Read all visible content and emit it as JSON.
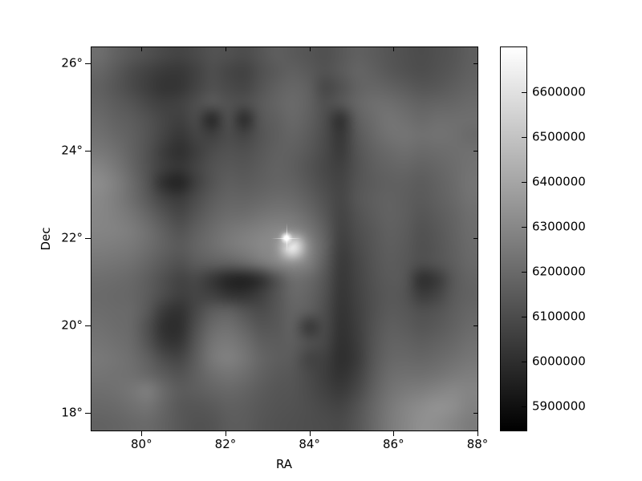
{
  "figure": {
    "background": "#ffffff",
    "border_color": "#000000",
    "text_color": "#000000",
    "title": ""
  },
  "chart_data": {
    "type": "heatmap",
    "title": "",
    "xlabel": "RA",
    "ylabel": "Dec",
    "grid_lines": "off",
    "x_axis": {
      "range": [
        78.81,
        88.0
      ],
      "tick_values": [
        80,
        82,
        84,
        86,
        88
      ],
      "tick_labels": [
        "80°",
        "82°",
        "84°",
        "86°",
        "88°"
      ]
    },
    "y_axis": {
      "range": [
        17.6,
        26.37
      ],
      "tick_values": [
        26,
        24,
        22,
        20,
        18
      ],
      "tick_labels": [
        "26°",
        "24°",
        "22°",
        "20°",
        "18°"
      ]
    },
    "colorbar": {
      "cmap": "gray",
      "vmin": 5846000,
      "vmax": 6700000,
      "tick_values": [
        6600000,
        6500000,
        6400000,
        6300000,
        6200000,
        6100000,
        6000000,
        5900000
      ],
      "tick_labels": [
        "6600000",
        "6500000",
        "6400000",
        "6300000",
        "6200000",
        "6100000",
        "6000000",
        "5900000"
      ],
      "gradient_top": "#ffffff",
      "gradient_bottom": "#000000"
    },
    "point_source": {
      "ra": 83.45,
      "dec": 22.0
    },
    "grid": {
      "rows": 24,
      "cols": 24,
      "value_encoding": "gray level 0-255 maps linearly vmin..vmax",
      "values": [
        [
          110,
          98,
          88,
          80,
          72,
          68,
          74,
          82,
          80,
          76,
          85,
          94,
          90,
          85,
          80,
          88,
          96,
          92,
          85,
          80,
          76,
          80,
          85,
          94
        ],
        [
          102,
          90,
          76,
          66,
          58,
          56,
          66,
          78,
          70,
          66,
          80,
          90,
          96,
          90,
          82,
          90,
          100,
          96,
          88,
          82,
          78,
          82,
          88,
          96
        ],
        [
          96,
          86,
          74,
          62,
          52,
          54,
          68,
          80,
          74,
          70,
          84,
          96,
          102,
          96,
          72,
          82,
          98,
          102,
          98,
          92,
          86,
          88,
          94,
          100
        ],
        [
          100,
          92,
          84,
          72,
          64,
          66,
          78,
          88,
          82,
          78,
          90,
          100,
          106,
          98,
          80,
          86,
          102,
          110,
          110,
          104,
          98,
          100,
          102,
          106
        ],
        [
          106,
          98,
          92,
          82,
          70,
          64,
          74,
          40,
          80,
          44,
          86,
          96,
          104,
          96,
          78,
          48,
          94,
          108,
          116,
          112,
          106,
          110,
          110,
          110
        ],
        [
          112,
          104,
          96,
          84,
          68,
          56,
          68,
          64,
          76,
          68,
          84,
          94,
          100,
          92,
          76,
          54,
          88,
          104,
          114,
          116,
          112,
          114,
          112,
          106
        ],
        [
          120,
          112,
          98,
          82,
          60,
          48,
          62,
          76,
          82,
          80,
          88,
          96,
          96,
          88,
          74,
          58,
          84,
          98,
          106,
          110,
          106,
          108,
          110,
          112
        ],
        [
          132,
          120,
          102,
          82,
          62,
          54,
          68,
          82,
          88,
          86,
          92,
          98,
          94,
          84,
          72,
          64,
          82,
          94,
          100,
          102,
          98,
          102,
          108,
          114
        ],
        [
          140,
          128,
          108,
          84,
          46,
          36,
          64,
          84,
          94,
          92,
          96,
          100,
          98,
          88,
          76,
          68,
          84,
          92,
          96,
          96,
          92,
          98,
          106,
          116
        ],
        [
          136,
          126,
          110,
          90,
          68,
          60,
          76,
          92,
          100,
          100,
          104,
          108,
          106,
          96,
          82,
          70,
          86,
          94,
          98,
          94,
          90,
          96,
          104,
          114
        ],
        [
          134,
          128,
          118,
          102,
          84,
          72,
          86,
          100,
          108,
          110,
          116,
          120,
          118,
          106,
          88,
          68,
          82,
          92,
          98,
          94,
          86,
          92,
          100,
          110
        ],
        [
          132,
          130,
          124,
          112,
          96,
          84,
          96,
          108,
          118,
          124,
          130,
          136,
          140,
          120,
          96,
          66,
          78,
          88,
          96,
          92,
          82,
          88,
          98,
          108
        ],
        [
          126,
          124,
          120,
          110,
          98,
          90,
          100,
          110,
          120,
          128,
          136,
          148,
          255,
          140,
          100,
          62,
          74,
          86,
          94,
          90,
          80,
          86,
          96,
          106
        ],
        [
          118,
          116,
          112,
          102,
          90,
          82,
          92,
          96,
          98,
          106,
          120,
          134,
          146,
          128,
          94,
          58,
          70,
          84,
          92,
          88,
          78,
          84,
          94,
          104
        ],
        [
          110,
          108,
          104,
          94,
          80,
          68,
          72,
          56,
          38,
          34,
          48,
          82,
          110,
          106,
          86,
          56,
          68,
          82,
          90,
          86,
          48,
          58,
          88,
          100
        ],
        [
          106,
          104,
          102,
          92,
          76,
          64,
          68,
          64,
          52,
          50,
          62,
          84,
          104,
          100,
          82,
          54,
          66,
          80,
          88,
          84,
          60,
          68,
          90,
          98
        ],
        [
          108,
          106,
          104,
          88,
          58,
          50,
          72,
          92,
          96,
          84,
          76,
          86,
          100,
          94,
          78,
          52,
          64,
          80,
          90,
          88,
          80,
          84,
          94,
          102
        ],
        [
          112,
          108,
          104,
          80,
          48,
          46,
          80,
          106,
          112,
          100,
          86,
          88,
          96,
          56,
          74,
          50,
          62,
          82,
          94,
          92,
          86,
          90,
          98,
          106
        ],
        [
          116,
          112,
          106,
          84,
          56,
          54,
          88,
          116,
          122,
          112,
          96,
          92,
          94,
          80,
          72,
          48,
          60,
          84,
          98,
          98,
          94,
          98,
          104,
          112
        ],
        [
          120,
          116,
          110,
          96,
          76,
          70,
          94,
          120,
          128,
          118,
          102,
          94,
          90,
          68,
          64,
          46,
          58,
          86,
          102,
          104,
          102,
          106,
          112,
          118
        ],
        [
          116,
          114,
          112,
          104,
          92,
          84,
          96,
          110,
          116,
          110,
          98,
          90,
          86,
          74,
          62,
          50,
          64,
          90,
          108,
          112,
          112,
          116,
          122,
          126
        ],
        [
          110,
          112,
          118,
          126,
          106,
          92,
          94,
          100,
          104,
          100,
          92,
          86,
          84,
          76,
          66,
          58,
          72,
          96,
          114,
          122,
          126,
          132,
          136,
          132
        ],
        [
          104,
          106,
          112,
          116,
          102,
          88,
          86,
          90,
          96,
          94,
          88,
          84,
          82,
          78,
          72,
          68,
          82,
          102,
          120,
          132,
          140,
          146,
          142,
          130
        ],
        [
          98,
          100,
          104,
          106,
          98,
          88,
          82,
          84,
          92,
          92,
          86,
          82,
          80,
          78,
          76,
          74,
          86,
          104,
          122,
          134,
          144,
          142,
          134,
          124
        ]
      ]
    }
  }
}
